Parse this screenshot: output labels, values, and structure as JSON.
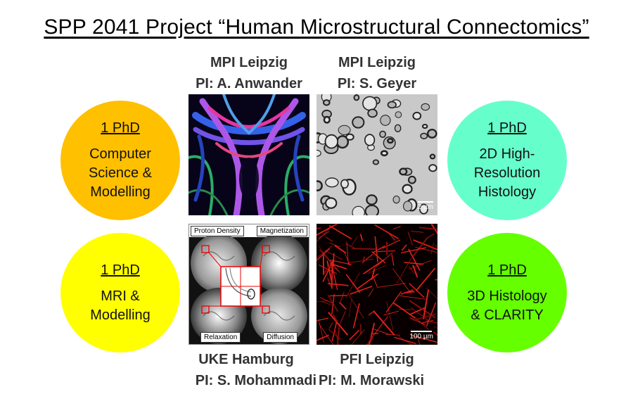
{
  "title": "SPP 2041 Project “Human Microstructural Connectomics”",
  "labs": {
    "top_left": {
      "institute": "MPI Leipzig",
      "pi": "PI: A. Anwander"
    },
    "top_right": {
      "institute": "MPI Leipzig",
      "pi": "PI: S. Geyer"
    },
    "bottom_left": {
      "institute": "UKE Hamburg",
      "pi": "PI: S. Mohammadi"
    },
    "bottom_right": {
      "institute": "PFI Leipzig",
      "pi": "PI: M. Morawski"
    }
  },
  "circles": [
    {
      "phd": "1 PhD",
      "lines": [
        "Computer",
        "Science &",
        "Modelling"
      ],
      "color": "#ffc000"
    },
    {
      "phd": "1 PhD",
      "lines": [
        "MRI &",
        "Modelling"
      ],
      "color": "#ffff00"
    },
    {
      "phd": "1 PhD",
      "lines": [
        "2D High-",
        "Resolution",
        "Histology"
      ],
      "color": "#66ffcc"
    },
    {
      "phd": "1 PhD",
      "lines": [
        "3D Histology",
        "& CLARITY"
      ],
      "color": "#66ff00"
    }
  ],
  "mri_panel": {
    "proton_density": "Proton Density",
    "magnetization": "Magnetization",
    "relaxation": "Relaxation",
    "diffusion": "Diffusion"
  },
  "scale_bars": {
    "histology": "2 µm",
    "clarity": "100 µm"
  }
}
